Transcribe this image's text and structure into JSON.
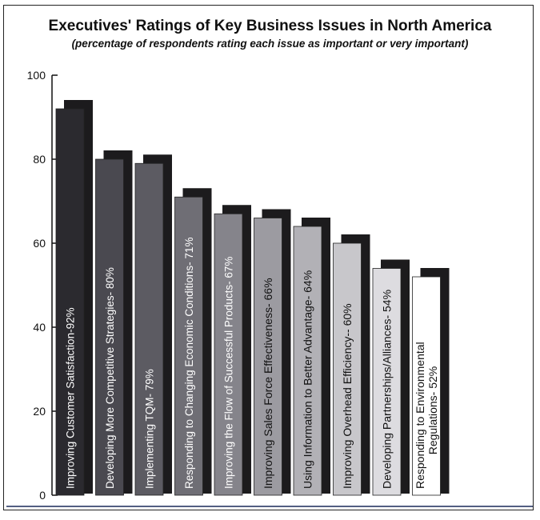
{
  "chart_data": {
    "type": "bar",
    "title": "Executives' Ratings of Key Business Issues in North America",
    "subtitle": "(percentage of respondents rating each issue as important or very important)",
    "xlabel": "",
    "ylabel": "",
    "ylim": [
      0,
      100
    ],
    "yticks": [
      0,
      20,
      40,
      60,
      80,
      100
    ],
    "grid": false,
    "categories": [
      "Improving Customer Satisfaction",
      "Developing More Competitive Strategies",
      "Implementing TQM",
      "Responding to Changing Economic Conditions",
      "Improving the Flow of Successful Products",
      "Improving Sales Force Effectiveness",
      "Using Information to Better Advantage",
      "Improving Overhead Efficiency",
      "Developing Partnerships/Alliances",
      "Responding to Environmental Regulations"
    ],
    "values": [
      92,
      80,
      79,
      71,
      67,
      66,
      64,
      60,
      54,
      52
    ],
    "bar_labels": [
      [
        "Improving Customer Satisfaction-92%"
      ],
      [
        "Developing More Competitive Strategies- 80%"
      ],
      [
        "Implementing TQM- 79%"
      ],
      [
        "Responding to Changing Economic Conditions- 71%"
      ],
      [
        "Improving the Flow of Successful Products- 67%"
      ],
      [
        "Improving Sales Force Effectiveness- 66%"
      ],
      [
        "Using Information to Better Advantage- 64%"
      ],
      [
        "Improving Overhead Efficiency-- 60%"
      ],
      [
        "Developing Partnerships/Alliances- 54%"
      ],
      [
        "Responding to Environmental",
        "Regulations- 52%"
      ]
    ],
    "colors": [
      "#2b2a2f",
      "#4a4950",
      "#5c5b62",
      "#6f6e75",
      "#85848b",
      "#9c9ba1",
      "#b2b1b6",
      "#c8c7cb",
      "#dddce0",
      "#ffffff"
    ],
    "label_colors": [
      "#ffffff",
      "#ffffff",
      "#ffffff",
      "#ffffff",
      "#ffffff",
      "#111111",
      "#111111",
      "#111111",
      "#111111",
      "#111111"
    ],
    "shadow_color": "#1c1b1d"
  }
}
